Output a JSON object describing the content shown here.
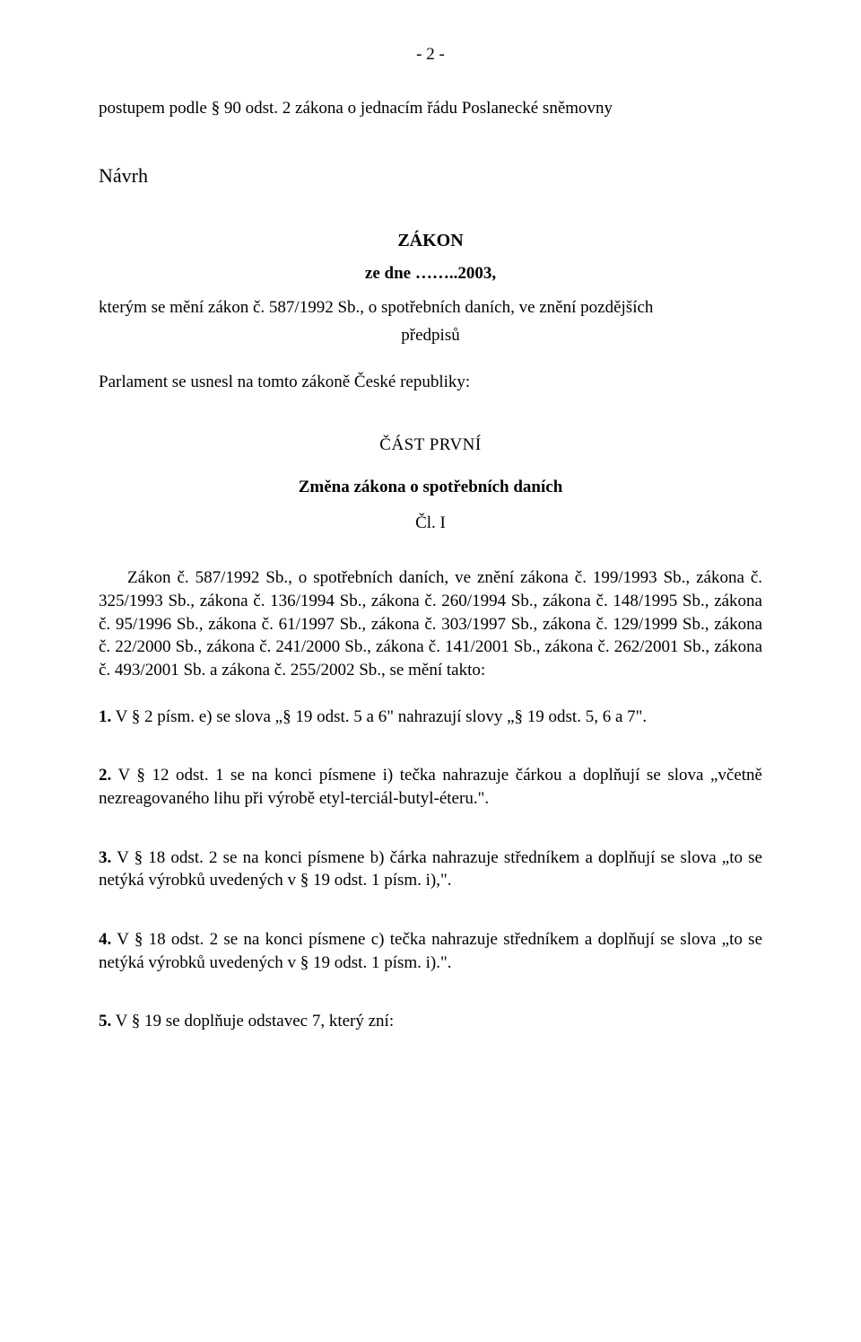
{
  "pageNumber": "- 2 -",
  "intro": "postupem podle § 90 odst. 2 zákona o jednacím řádu Poslanecké sněmovny",
  "navrh": "Návrh",
  "zakon": "ZÁKON",
  "zedne": "ze dne ……..2003,",
  "kterymLine": "kterým se mění zákon č. 587/1992 Sb., o spotřebních daních, ve znění pozdějších",
  "predpisu": "předpisů",
  "parlament": "Parlament se usnesl na tomto zákoně České republiky:",
  "cast": "ČÁST  PRVNÍ",
  "zmena": "Změna zákona o spotřebních daních",
  "cl": "Čl. I",
  "citations": "Zákon č. 587/1992 Sb., o spotřebních daních, ve znění zákona č. 199/1993 Sb., zákona č. 325/1993 Sb., zákona č. 136/1994 Sb., zákona č. 260/1994 Sb., zákona č. 148/1995 Sb., zákona č. 95/1996 Sb., zákona č. 61/1997 Sb., zákona č. 303/1997 Sb., zákona č. 129/1999 Sb., zákona č. 22/2000 Sb., zákona č. 241/2000 Sb., zákona č. 141/2001 Sb., zákona č. 262/2001 Sb., zákona č. 493/2001 Sb. a zákona č. 255/2002 Sb., se mění takto:",
  "items": {
    "i1_num": "1.",
    "i1_text": " V § 2 písm. e) se slova „§ 19 odst. 5 a 6\" nahrazují slovy „§ 19 odst. 5, 6 a 7\".",
    "i2_num": "2.",
    "i2_text": " V § 12 odst. 1 se na konci písmene i) tečka nahrazuje čárkou a doplňují se slova „včetně nezreagovaného lihu při výrobě etyl-terciál-butyl-éteru.\".",
    "i3_num": "3.",
    "i3_text": " V § 18 odst. 2 se na konci písmene b) čárka nahrazuje středníkem a doplňují se slova  „to se netýká výrobků uvedených v § 19 odst. 1 písm. i),\".",
    "i4_num": "4.",
    "i4_text": " V § 18 odst. 2 se na konci písmene c) tečka nahrazuje středníkem a doplňují se slova „to se netýká výrobků uvedených v § 19 odst. 1 písm. i).\".",
    "i5_num": "5.",
    "i5_text": " V § 19 se doplňuje odstavec 7, který zní:"
  }
}
